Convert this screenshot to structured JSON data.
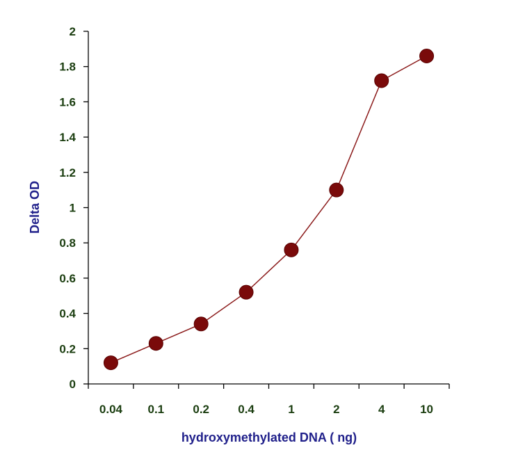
{
  "chart_data": {
    "type": "line",
    "xlabel": "hydroxymethylated DNA ( ng)",
    "ylabel": "Delta OD",
    "categories": [
      "0.04",
      "0.1",
      "0.2",
      "0.4",
      "1",
      "2",
      "4",
      "10"
    ],
    "series": [
      {
        "values": [
          0.12,
          0.23,
          0.34,
          0.52,
          0.76,
          1.1,
          1.72,
          1.86
        ]
      }
    ],
    "ylim": [
      0,
      2
    ],
    "yticks": [
      "0",
      "0.2",
      "0.4",
      "0.6",
      "0.8",
      "1",
      "1.2",
      "1.4",
      "1.6",
      "1.8",
      "2"
    ],
    "grid": false,
    "colors": {
      "line": "#8b1a1a",
      "marker": "#7a0a0a",
      "axis": "#000000",
      "tick_text": "#1a3d0f",
      "title_text": "#1f1f8a"
    }
  }
}
